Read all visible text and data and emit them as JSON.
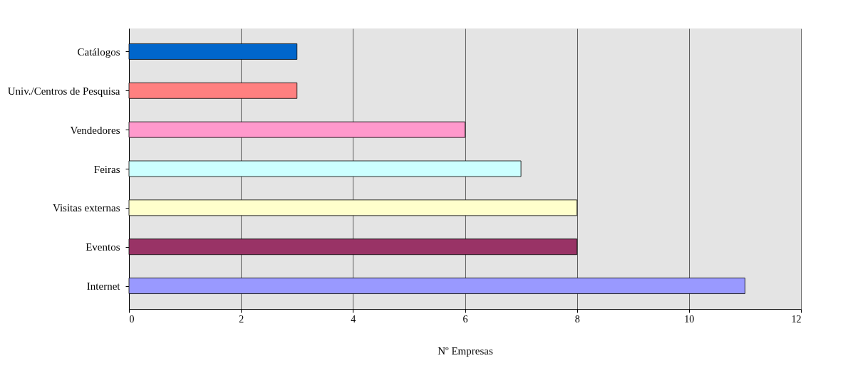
{
  "chart_data": {
    "type": "bar",
    "orientation": "horizontal",
    "xlabel": "Nº Empresas",
    "categories": [
      "Catálogos",
      "Univ./Centros de Pesquisa",
      "Vendedores",
      "Feiras",
      "Visitas externas",
      "Eventos",
      "Internet"
    ],
    "values": [
      3,
      3,
      6,
      7,
      8,
      8,
      11
    ],
    "colors": [
      "#0066cc",
      "#ff8080",
      "#ff99cc",
      "#ccffff",
      "#ffffcc",
      "#993366",
      "#9999ff"
    ],
    "xlim": [
      0,
      12
    ],
    "xticks": [
      0,
      2,
      4,
      6,
      8,
      10,
      12
    ],
    "grid": "x"
  }
}
